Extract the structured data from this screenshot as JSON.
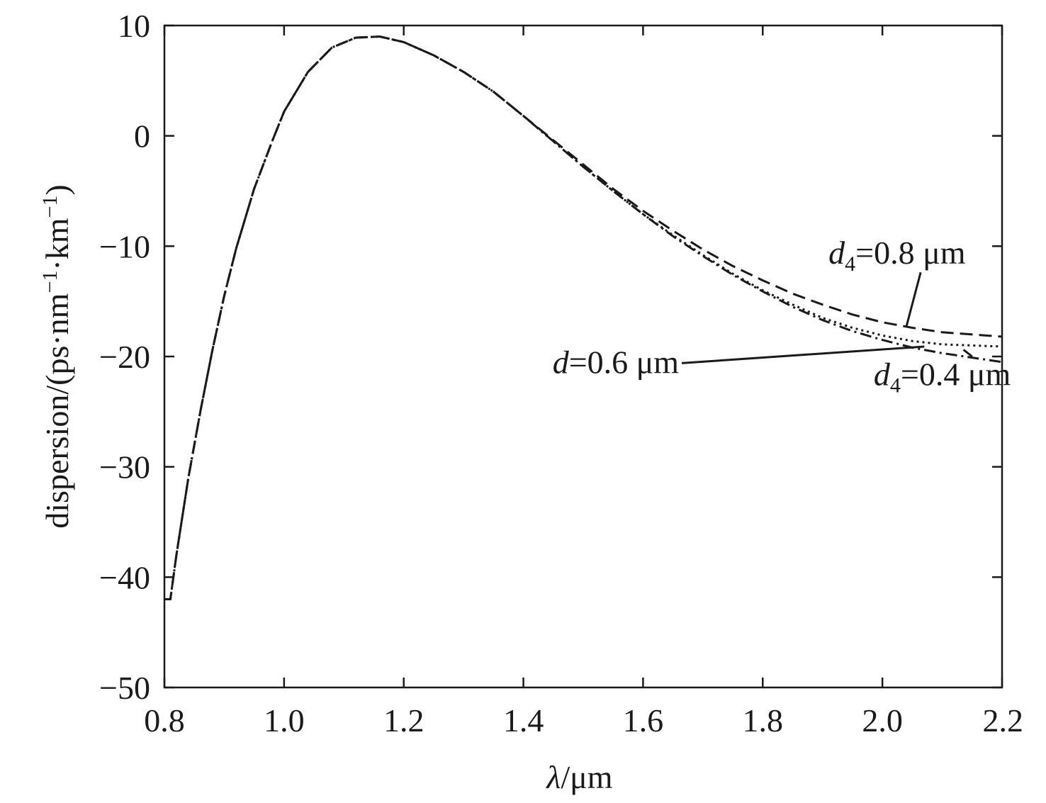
{
  "chart_data": {
    "type": "line",
    "title": "",
    "xlabel": {
      "symbol": "λ",
      "unit": "/μm"
    },
    "ylabel": {
      "text": "dispersion/(ps·nm",
      "sup1": "−1",
      "mid": "·km",
      "sup2": "−1",
      "close": ")"
    },
    "xlim": [
      0.8,
      2.2
    ],
    "ylim": [
      -50,
      10
    ],
    "xticks": [
      0.8,
      1.0,
      1.2,
      1.4,
      1.6,
      1.8,
      2.0,
      2.2
    ],
    "xtick_labels": [
      "0.8",
      "1.0",
      "1.2",
      "1.4",
      "1.6",
      "1.8",
      "2.0",
      "2.2"
    ],
    "yticks": [
      10,
      0,
      -10,
      -20,
      -30,
      -40,
      -50
    ],
    "ytick_labels": [
      "10",
      "0",
      "−10",
      "−20",
      "−30",
      "−40",
      "−50"
    ],
    "grid": false,
    "x": [
      0.8,
      0.81,
      0.82,
      0.84,
      0.86,
      0.88,
      0.9,
      0.92,
      0.95,
      0.98,
      1.0,
      1.04,
      1.08,
      1.12,
      1.16,
      1.2,
      1.25,
      1.3,
      1.35,
      1.4,
      1.45,
      1.5,
      1.55,
      1.6,
      1.65,
      1.7,
      1.75,
      1.8,
      1.85,
      1.9,
      1.95,
      2.0,
      2.05,
      2.1,
      2.15,
      2.2
    ],
    "base_values": [
      -42.0,
      -42.0,
      -38.0,
      -31.0,
      -25.0,
      -19.5,
      -14.5,
      -10.2,
      -4.8,
      -0.5,
      2.2,
      5.8,
      8.0,
      8.9,
      9.0,
      8.5,
      7.3,
      5.8,
      4.0,
      1.8,
      -0.5,
      -2.8,
      -5.0,
      -7.1,
      -9.0,
      -10.8,
      -12.5,
      -14.0,
      -15.3,
      -16.5,
      -17.4,
      -18.1,
      -18.6,
      -18.9,
      -19.0,
      -19.1
    ],
    "series": [
      {
        "label": {
          "var": "d",
          "sub": "4",
          "text": "=0.8 μm"
        },
        "style": "dashed",
        "values": [
          -42.0,
          -42.0,
          -38.0,
          -31.0,
          -25.0,
          -19.5,
          -14.5,
          -10.2,
          -4.8,
          -0.5,
          2.2,
          5.8,
          8.0,
          8.9,
          9.0,
          8.5,
          7.3,
          5.8,
          4.0,
          1.8,
          -0.4,
          -2.6,
          -4.8,
          -6.8,
          -8.6,
          -10.3,
          -11.8,
          -13.1,
          -14.3,
          -15.3,
          -16.2,
          -16.9,
          -17.4,
          -17.8,
          -18.0,
          -18.2
        ]
      },
      {
        "label": {
          "var": "d",
          "sub": "",
          "text": "=0.6 μm"
        },
        "style": "dotted",
        "values": [
          -42.0,
          -42.0,
          -38.0,
          -31.0,
          -25.0,
          -19.5,
          -14.5,
          -10.2,
          -4.8,
          -0.5,
          2.2,
          5.8,
          8.0,
          8.9,
          9.0,
          8.5,
          7.3,
          5.8,
          4.0,
          1.8,
          -0.5,
          -2.8,
          -5.0,
          -7.1,
          -9.0,
          -10.8,
          -12.5,
          -14.0,
          -15.3,
          -16.5,
          -17.4,
          -18.1,
          -18.6,
          -18.9,
          -19.0,
          -19.1
        ]
      },
      {
        "label": {
          "var": "d",
          "sub": "4",
          "text": "=0.4 μm"
        },
        "style": "dashdot",
        "values": [
          -42.0,
          -42.0,
          -38.0,
          -31.0,
          -25.0,
          -19.5,
          -14.5,
          -10.2,
          -4.8,
          -0.5,
          2.2,
          5.8,
          8.0,
          8.9,
          9.0,
          8.5,
          7.3,
          5.8,
          4.0,
          1.8,
          -0.5,
          -2.8,
          -5.0,
          -7.1,
          -9.1,
          -10.9,
          -12.6,
          -14.1,
          -15.5,
          -16.7,
          -17.7,
          -18.5,
          -19.2,
          -19.7,
          -20.1,
          -20.5
        ]
      }
    ],
    "annotations": [
      {
        "series_index": 0,
        "pointer_to": [
          2.04,
          -17.3
        ],
        "label_at": [
          1.91,
          -11.6
        ],
        "align": "start"
      },
      {
        "series_index": 1,
        "pointer_to": [
          2.07,
          -19.1
        ],
        "label_at": [
          1.66,
          -21.5
        ],
        "align": "end"
      },
      {
        "series_index": 2,
        "pointer_to": [
          2.15,
          -20.0
        ],
        "label_at": [
          2.1,
          -22.6
        ],
        "align": "middle"
      }
    ]
  }
}
